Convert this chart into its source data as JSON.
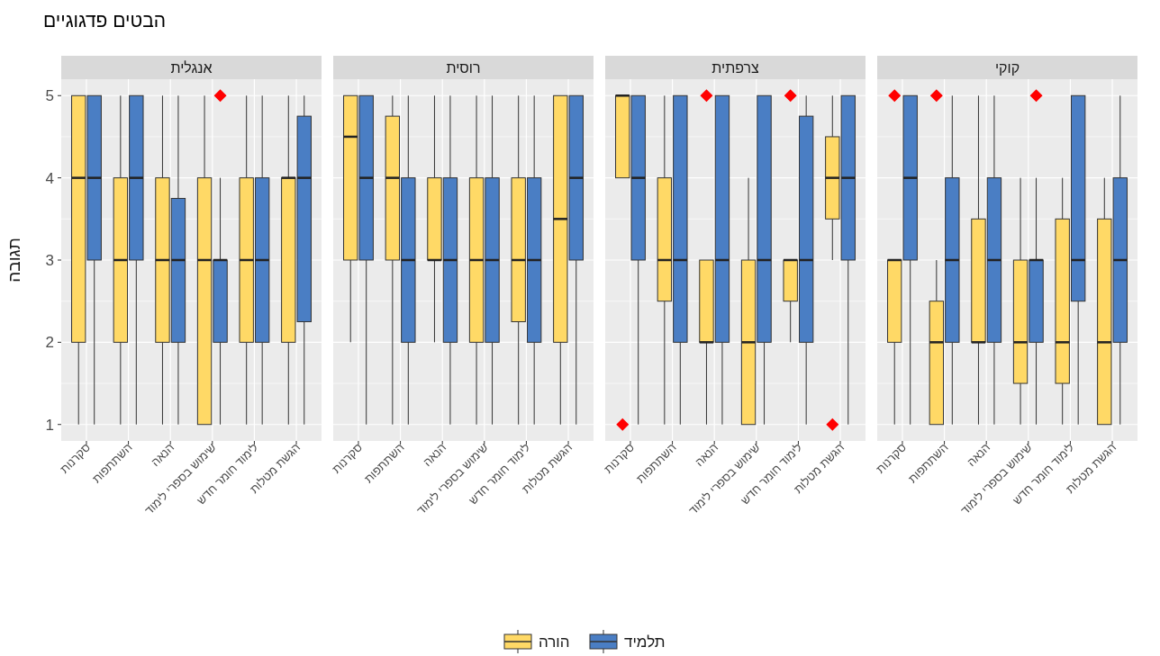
{
  "chart_data": [
    {
      "type": "box",
      "title": "אנגלית",
      "ylabel": "תגובה",
      "annotations": [
        "הבטים פדגוגיים"
      ],
      "legend": "bottom",
      "grid": true,
      "categories": [
        "סקרנות",
        "השתתפות",
        "הנאה",
        "שימוש בספרי לימוד",
        "לימוד חומר חדש",
        "הגשת מטלות"
      ],
      "ylim": [
        0.8,
        5.2
      ],
      "yticks": [
        1,
        2,
        3,
        4,
        5
      ],
      "series": [
        {
          "name": "הורה",
          "color": "#ffd966",
          "boxes": [
            {
              "low": 1,
              "q1": 2,
              "median": 4,
              "q3": 5,
              "high": 5
            },
            {
              "low": 1,
              "q1": 2,
              "median": 3,
              "q3": 4,
              "high": 5
            },
            {
              "low": 1,
              "q1": 2,
              "median": 3,
              "q3": 4,
              "high": 5
            },
            {
              "low": 1,
              "q1": 1,
              "median": 3,
              "q3": 4,
              "high": 5
            },
            {
              "low": 1,
              "q1": 2,
              "median": 3,
              "q3": 4,
              "high": 5
            },
            {
              "low": 1,
              "q1": 2,
              "median": 4,
              "q3": 4,
              "high": 5
            }
          ]
        },
        {
          "name": "תלמיד",
          "color": "#4a7ec4",
          "boxes": [
            {
              "low": 1,
              "q1": 3,
              "median": 4,
              "q3": 5,
              "high": 5
            },
            {
              "low": 1,
              "q1": 3,
              "median": 4,
              "q3": 5,
              "high": 5
            },
            {
              "low": 1,
              "q1": 2,
              "median": 3,
              "q3": 3.75,
              "high": 5
            },
            {
              "low": 1,
              "q1": 2,
              "median": 3,
              "q3": 3,
              "high": 4,
              "outliers": [
                5
              ]
            },
            {
              "low": 1,
              "q1": 2,
              "median": 3,
              "q3": 4,
              "high": 5
            },
            {
              "low": 1,
              "q1": 2.25,
              "median": 4,
              "q3": 4.75,
              "high": 5
            }
          ]
        }
      ]
    },
    {
      "type": "box",
      "title": "רוסית",
      "grid": true,
      "tick_labels": "x",
      "categories": [
        "סקרנות",
        "השתתפות",
        "הנאה",
        "שימוש בספרי לימוד",
        "לימוד חומר חדש",
        "הגשת מטלות"
      ],
      "ylim": [
        0.8,
        5.2
      ],
      "yticks": [
        1,
        2,
        3,
        4,
        5
      ],
      "series": [
        {
          "name": "הורה",
          "color": "#ffd966",
          "boxes": [
            {
              "low": 2,
              "q1": 3,
              "median": 4.5,
              "q3": 5,
              "high": 5
            },
            {
              "low": 1,
              "q1": 3,
              "median": 4,
              "q3": 4.75,
              "high": 5
            },
            {
              "low": 2,
              "q1": 3,
              "median": 3,
              "q3": 4,
              "high": 5
            },
            {
              "low": 1,
              "q1": 2,
              "median": 3,
              "q3": 4,
              "high": 5
            },
            {
              "low": 1,
              "q1": 2.25,
              "median": 3,
              "q3": 4,
              "high": 5
            },
            {
              "low": 1,
              "q1": 2,
              "median": 3.5,
              "q3": 5,
              "high": 5
            }
          ]
        },
        {
          "name": "תלמיד",
          "color": "#4a7ec4",
          "boxes": [
            {
              "low": 1,
              "q1": 3,
              "median": 4,
              "q3": 5,
              "high": 5
            },
            {
              "low": 1,
              "q1": 2,
              "median": 3,
              "q3": 4,
              "high": 5
            },
            {
              "low": 1,
              "q1": 2,
              "median": 3,
              "q3": 4,
              "high": 5
            },
            {
              "low": 1,
              "q1": 2,
              "median": 3,
              "q3": 4,
              "high": 5
            },
            {
              "low": 1,
              "q1": 2,
              "median": 3,
              "q3": 4,
              "high": 5
            },
            {
              "low": 1,
              "q1": 3,
              "median": 4,
              "q3": 5,
              "high": 5
            }
          ]
        }
      ]
    },
    {
      "type": "box",
      "title": "צרפתית",
      "grid": true,
      "tick_labels": "x",
      "categories": [
        "סקרנות",
        "השתתפות",
        "הנאה",
        "שימוש בספרי לימוד",
        "לימוד חומר חדש",
        "הגשת מטלות"
      ],
      "ylim": [
        0.8,
        5.2
      ],
      "yticks": [
        1,
        2,
        3,
        4,
        5
      ],
      "series": [
        {
          "name": "הורה",
          "color": "#ffd966",
          "boxes": [
            {
              "low": 4,
              "q1": 4,
              "median": 5,
              "q3": 5,
              "high": 5,
              "outliers": [
                1
              ]
            },
            {
              "low": 1,
              "q1": 2.5,
              "median": 3,
              "q3": 4,
              "high": 5
            },
            {
              "low": 1,
              "q1": 2,
              "median": 2,
              "q3": 3,
              "high": 3,
              "outliers": [
                5
              ]
            },
            {
              "low": 1,
              "q1": 1,
              "median": 2,
              "q3": 3,
              "high": 4
            },
            {
              "low": 2,
              "q1": 2.5,
              "median": 3,
              "q3": 3,
              "high": 3,
              "outliers": [
                5
              ]
            },
            {
              "low": 3,
              "q1": 3.5,
              "median": 4,
              "q3": 4.5,
              "high": 5,
              "outliers": [
                1
              ]
            }
          ]
        },
        {
          "name": "תלמיד",
          "color": "#4a7ec4",
          "boxes": [
            {
              "low": 1,
              "q1": 3,
              "median": 4,
              "q3": 5,
              "high": 5
            },
            {
              "low": 1,
              "q1": 2,
              "median": 3,
              "q3": 5,
              "high": 5
            },
            {
              "low": 1,
              "q1": 2,
              "median": 3,
              "q3": 5,
              "high": 5
            },
            {
              "low": 1,
              "q1": 2,
              "median": 3,
              "q3": 5,
              "high": 5
            },
            {
              "low": 1,
              "q1": 2,
              "median": 3,
              "q3": 4.75,
              "high": 5
            },
            {
              "low": 1,
              "q1": 3,
              "median": 4,
              "q3": 5,
              "high": 5
            }
          ]
        }
      ]
    },
    {
      "type": "box",
      "title": "קוקי",
      "grid": true,
      "tick_labels": "x",
      "categories": [
        "סקרנות",
        "השתתפות",
        "הנאה",
        "שימוש בספרי לימוד",
        "לימוד חומר חדש",
        "הגשת מטלות"
      ],
      "ylim": [
        0.8,
        5.2
      ],
      "yticks": [
        1,
        2,
        3,
        4,
        5
      ],
      "series": [
        {
          "name": "הורה",
          "color": "#ffd966",
          "boxes": [
            {
              "low": 1,
              "q1": 2,
              "median": 3,
              "q3": 3,
              "high": 3,
              "outliers": [
                5
              ]
            },
            {
              "low": 1,
              "q1": 1,
              "median": 2,
              "q3": 2.5,
              "high": 3,
              "outliers": [
                5
              ]
            },
            {
              "low": 1,
              "q1": 2,
              "median": 2,
              "q3": 3.5,
              "high": 5
            },
            {
              "low": 1,
              "q1": 1.5,
              "median": 2,
              "q3": 3,
              "high": 4
            },
            {
              "low": 1,
              "q1": 1.5,
              "median": 2,
              "q3": 3.5,
              "high": 4
            },
            {
              "low": 1,
              "q1": 1,
              "median": 2,
              "q3": 3.5,
              "high": 4
            }
          ]
        },
        {
          "name": "תלמיד",
          "color": "#4a7ec4",
          "boxes": [
            {
              "low": 1,
              "q1": 3,
              "median": 4,
              "q3": 5,
              "high": 5
            },
            {
              "low": 1,
              "q1": 2,
              "median": 3,
              "q3": 4,
              "high": 5
            },
            {
              "low": 1,
              "q1": 2,
              "median": 3,
              "q3": 4,
              "high": 5
            },
            {
              "low": 1,
              "q1": 2,
              "median": 3,
              "q3": 3,
              "high": 4,
              "outliers": [
                5
              ]
            },
            {
              "low": 1,
              "q1": 2.5,
              "median": 3,
              "q3": 5,
              "high": 5
            },
            {
              "low": 1,
              "q1": 2,
              "median": 3,
              "q3": 4,
              "high": 5
            }
          ]
        }
      ]
    }
  ]
}
